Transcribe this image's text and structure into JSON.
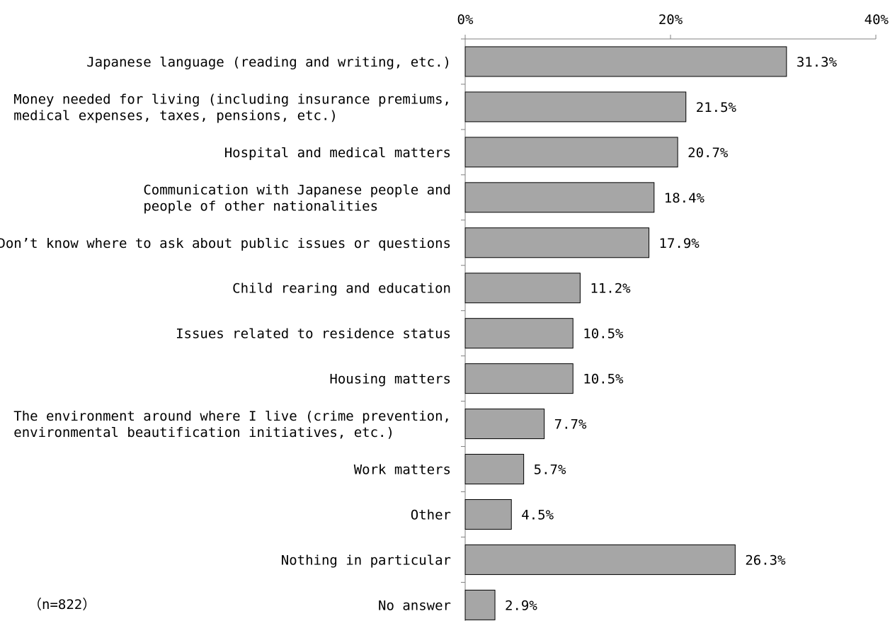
{
  "chart_data": {
    "type": "bar",
    "orientation": "horizontal",
    "categories": [
      [
        "Japanese language (reading and writing, etc.)"
      ],
      [
        "Money needed for living (including insurance premiums,",
        "medical expenses, taxes, pensions, etc.)"
      ],
      [
        "Hospital and medical matters"
      ],
      [
        "Communication with Japanese people and",
        "people of other nationalities"
      ],
      [
        "Don’t know where to ask about public issues or questions"
      ],
      [
        "Child rearing and education"
      ],
      [
        "Issues related to residence status"
      ],
      [
        "Housing matters"
      ],
      [
        "The environment around where I live (crime prevention,",
        "environmental beautification initiatives, etc.)"
      ],
      [
        "Work matters"
      ],
      [
        "Other"
      ],
      [
        "Nothing in particular"
      ],
      [
        "No answer"
      ]
    ],
    "values": [
      31.3,
      21.5,
      20.7,
      18.4,
      17.9,
      11.2,
      10.5,
      10.5,
      7.7,
      5.7,
      4.5,
      26.3,
      2.9
    ],
    "value_labels": [
      "31.3%",
      "21.5%",
      "20.7%",
      "18.4%",
      "17.9%",
      "11.2%",
      "10.5%",
      "10.5%",
      "7.7%",
      "5.7%",
      "4.5%",
      "26.3%",
      "2.9%"
    ],
    "xlim": [
      0,
      40
    ],
    "x_ticks": [
      0,
      20,
      40
    ],
    "x_tick_labels": [
      "0%",
      "20%",
      "40%"
    ],
    "axis_position": "top",
    "bar_color": "#a6a6a6",
    "grid": false,
    "legend": "none"
  },
  "sample_note": "（n=822）"
}
